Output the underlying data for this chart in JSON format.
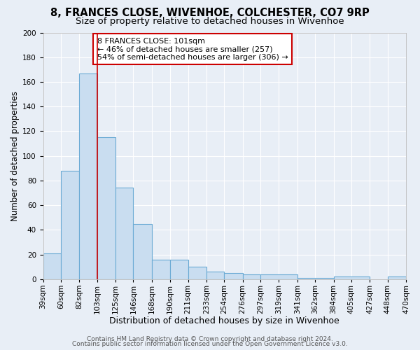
{
  "title": "8, FRANCES CLOSE, WIVENHOE, COLCHESTER, CO7 9RP",
  "subtitle": "Size of property relative to detached houses in Wivenhoe",
  "xlabel": "Distribution of detached houses by size in Wivenhoe",
  "ylabel": "Number of detached properties",
  "bins": [
    "39sqm",
    "60sqm",
    "82sqm",
    "103sqm",
    "125sqm",
    "146sqm",
    "168sqm",
    "190sqm",
    "211sqm",
    "233sqm",
    "254sqm",
    "276sqm",
    "297sqm",
    "319sqm",
    "341sqm",
    "362sqm",
    "384sqm",
    "405sqm",
    "427sqm",
    "448sqm",
    "470sqm"
  ],
  "bar_values": [
    21,
    88,
    167,
    115,
    74,
    45,
    16,
    16,
    10,
    6,
    5,
    4,
    4,
    1,
    2,
    2
  ],
  "bar_left_edges": [
    39,
    60,
    82,
    103,
    125,
    146,
    168,
    190,
    211,
    233,
    254,
    276,
    297,
    341,
    384,
    448
  ],
  "bar_widths": [
    21,
    22,
    21,
    22,
    21,
    22,
    22,
    21,
    22,
    21,
    22,
    21,
    44,
    43,
    43,
    22
  ],
  "bar_color": "#c9ddf0",
  "bar_edge_color": "#6aaad4",
  "reference_line_x": 103,
  "reference_line_color": "#cc0000",
  "ylim": [
    0,
    200
  ],
  "yticks": [
    0,
    20,
    40,
    60,
    80,
    100,
    120,
    140,
    160,
    180,
    200
  ],
  "xtick_positions": [
    39,
    60,
    82,
    103,
    125,
    146,
    168,
    190,
    211,
    233,
    254,
    276,
    297,
    319,
    341,
    362,
    384,
    405,
    427,
    448,
    470
  ],
  "annotation_box_text": "8 FRANCES CLOSE: 101sqm\n← 46% of detached houses are smaller (257)\n54% of semi-detached houses are larger (306) →",
  "bg_color": "#e8eef6",
  "plot_bg_color": "#e8eef6",
  "grid_color": "#ffffff",
  "footer_line1": "Contains HM Land Registry data © Crown copyright and database right 2024.",
  "footer_line2": "Contains public sector information licensed under the Open Government Licence v3.0.",
  "title_fontsize": 10.5,
  "subtitle_fontsize": 9.5,
  "xlabel_fontsize": 9,
  "ylabel_fontsize": 8.5,
  "tick_fontsize": 7.5,
  "annot_fontsize": 8,
  "footer_fontsize": 6.5
}
